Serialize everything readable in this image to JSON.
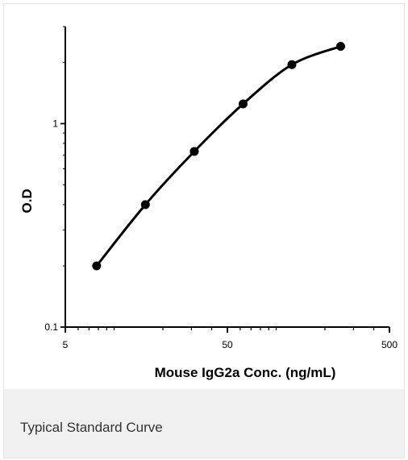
{
  "caption": "Typical Standard Curve",
  "chart_data": {
    "type": "line",
    "title": "",
    "xlabel": "Mouse IgG2a Conc. (ng/mL)",
    "ylabel": "O.D",
    "xscale": "log",
    "yscale": "log",
    "xlim": [
      5,
      500
    ],
    "ylim": [
      0.1,
      3
    ],
    "x_ticks": [
      5,
      50,
      500
    ],
    "y_ticks": [
      0.1,
      1
    ],
    "x_tick_labels": [
      "5",
      "50",
      "500"
    ],
    "y_tick_labels": [
      "0.1",
      "1"
    ],
    "grid": false,
    "legend": "none",
    "line_color": "#000000",
    "marker": "circle",
    "series": [
      {
        "x": [
          7.8,
          15.6,
          31.25,
          62.5,
          125,
          250
        ],
        "y": [
          0.2,
          0.4,
          0.73,
          1.25,
          1.95,
          2.4
        ]
      }
    ]
  }
}
